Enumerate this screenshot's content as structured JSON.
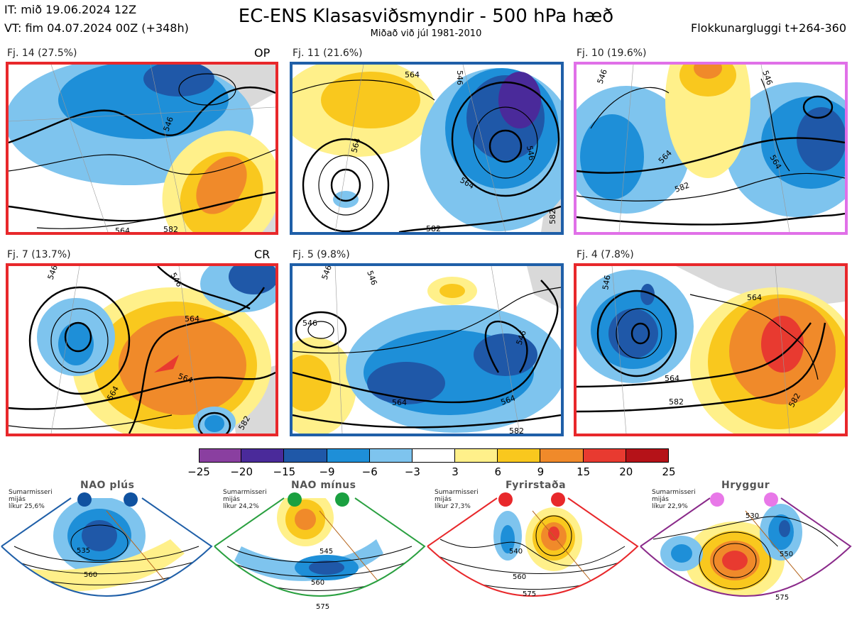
{
  "header": {
    "it": "IT: mið 19.06.2024 12Z",
    "vt": "VT: fim 04.07.2024 00Z  (+348h)",
    "title": "EC-ENS Klasasviðsmyndir - 500 hPa hæð",
    "subtitle": "Miðað við júl 1981-2010",
    "window": "Flokkunargluggi t+264-360"
  },
  "panels": [
    {
      "label": "Fj. 14 (27.5%)",
      "tag": "OP",
      "border": "#e8282b",
      "contours": [
        "546",
        "564",
        "582"
      ]
    },
    {
      "label": "Fj. 11 (21.6%)",
      "tag": "",
      "border": "#1f5fa8",
      "contours": [
        "564",
        "546",
        "564",
        "546",
        "564",
        "582",
        "582"
      ]
    },
    {
      "label": "Fj. 10 (19.6%)",
      "tag": "",
      "border": "#e070e8",
      "contours": [
        "546",
        "546",
        "564",
        "564",
        "582"
      ]
    },
    {
      "label": "Fj. 7 (13.7%)",
      "tag": "CR",
      "border": "#e8282b",
      "contours": [
        "546",
        "546",
        "564",
        "564",
        "564",
        "582"
      ]
    },
    {
      "label": "Fj. 5 (9.8%)",
      "tag": "",
      "border": "#1f5fa8",
      "contours": [
        "546",
        "546",
        "546",
        "546",
        "564",
        "564",
        "582"
      ]
    },
    {
      "label": "Fj. 4 (7.8%)",
      "tag": "",
      "border": "#e8282b",
      "contours": [
        "546",
        "564",
        "564",
        "582",
        "582"
      ]
    }
  ],
  "chart_data": {
    "type": "heatmap",
    "title": "EC-ENS Klasasviðsmyndir - 500 hPa hæð",
    "subtitle": "Miðað við júl 1981-2010",
    "colorbar": {
      "ticks": [
        "−25",
        "−20",
        "−15",
        "−9",
        "−6",
        "−3",
        "3",
        "6",
        "9",
        "15",
        "20",
        "25"
      ],
      "colors": [
        "#8a3fa0",
        "#4a2a9a",
        "#1f58a8",
        "#1e8fd8",
        "#7ec4ee",
        "#ffffff",
        "#fff08a",
        "#f9c81e",
        "#f08a2a",
        "#e83a30",
        "#b51218"
      ]
    },
    "clusters": [
      {
        "name": "Fj. 14",
        "percent": 27.5,
        "tag": "OP"
      },
      {
        "name": "Fj. 11",
        "percent": 21.6
      },
      {
        "name": "Fj. 10",
        "percent": 19.6
      },
      {
        "name": "Fj. 7",
        "percent": 13.7,
        "tag": "CR"
      },
      {
        "name": "Fj. 5",
        "percent": 9.8
      },
      {
        "name": "Fj. 4",
        "percent": 7.8
      }
    ],
    "contour_levels": [
      546,
      564,
      582
    ]
  },
  "regimes": [
    {
      "name": "NAO plús",
      "note": [
        "Sumarmisseri",
        "mijás",
        "líkur 25,6%"
      ],
      "color": "#1f5fa8",
      "dot": "#1052a0",
      "contours": [
        "535",
        "560"
      ]
    },
    {
      "name": "NAO mínus",
      "note": [
        "Sumarmisseri",
        "mijás",
        "líkur 24,2%"
      ],
      "color": "#2aa040",
      "dot": "#1aa040",
      "contours": [
        "545",
        "560",
        "575"
      ]
    },
    {
      "name": "Fyrirstaða",
      "note": [
        "Sumarmisseri",
        "mijás",
        "líkur 27,3%"
      ],
      "color": "#e8282b",
      "dot": "#e8282b",
      "contours": [
        "540",
        "560",
        "575"
      ]
    },
    {
      "name": "Hryggur",
      "note": [
        "Sumarmisseri",
        "mijás",
        "líkur 22,9%"
      ],
      "color": "#8a2a8a",
      "dot": "#e878e8",
      "contours": [
        "530",
        "550",
        "575"
      ]
    }
  ]
}
